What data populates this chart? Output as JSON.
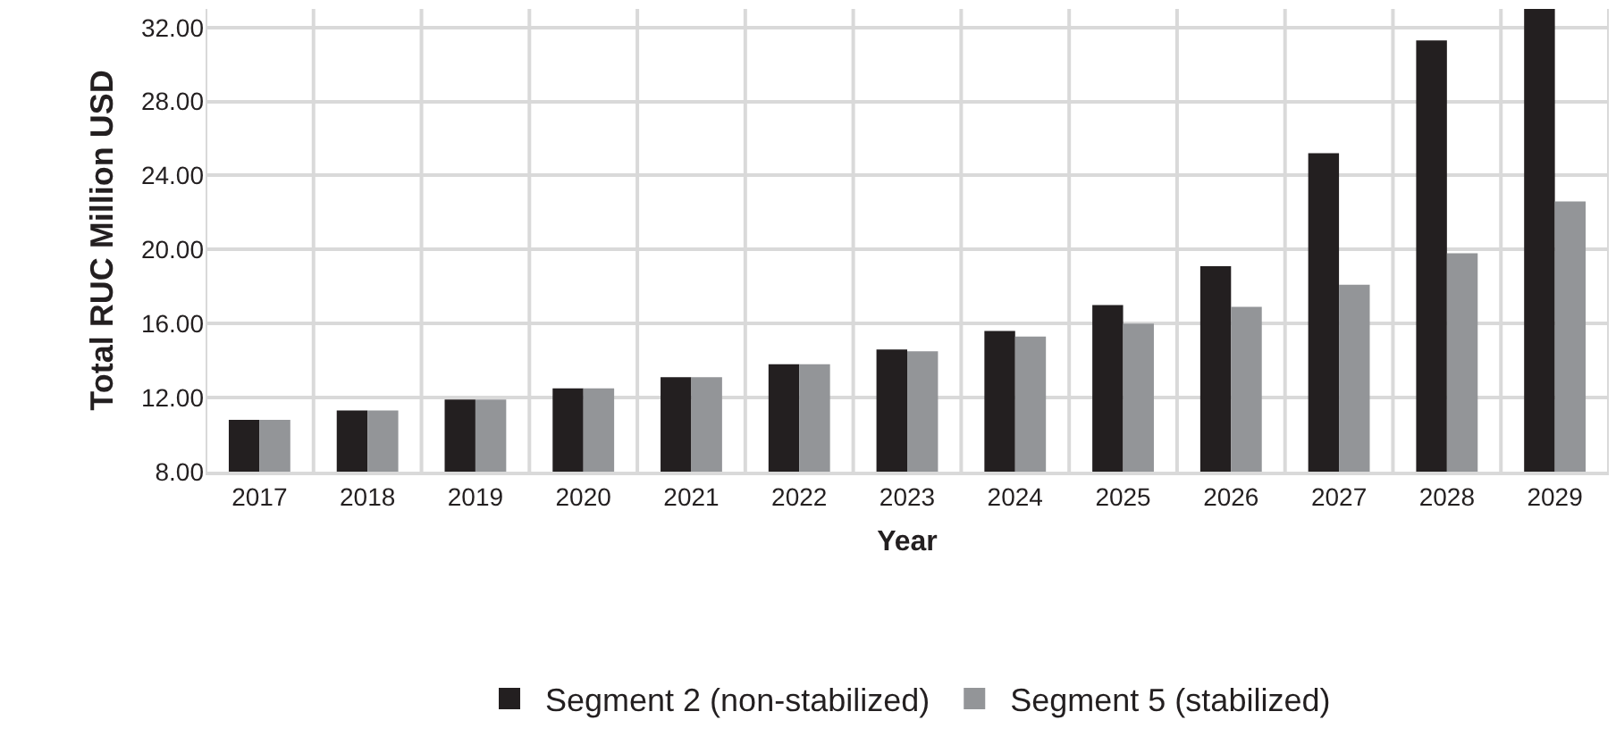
{
  "chart_data": {
    "type": "bar",
    "xlabel": "Year",
    "ylabel": "Total RUC Million USD",
    "categories": [
      "2017",
      "2018",
      "2019",
      "2020",
      "2021",
      "2022",
      "2023",
      "2024",
      "2025",
      "2026",
      "2027",
      "2028",
      "2029"
    ],
    "series": [
      {
        "name": "Segment 2 (non-stabilized)",
        "color": "#231f20",
        "values": [
          10.8,
          11.3,
          11.9,
          12.5,
          13.1,
          13.8,
          14.6,
          15.6,
          17.0,
          19.1,
          25.2,
          31.3,
          33.0
        ]
      },
      {
        "name": "Segment 5 (stabilized)",
        "color": "#939598",
        "values": [
          10.8,
          11.3,
          11.9,
          12.5,
          13.1,
          13.8,
          14.5,
          15.3,
          16.0,
          16.9,
          18.1,
          19.8,
          22.6
        ]
      }
    ],
    "ylim": [
      8,
      33
    ],
    "yticks": [
      {
        "value": 8,
        "label": "8.00"
      },
      {
        "value": 12,
        "label": "12.00"
      },
      {
        "value": 16,
        "label": "16.00"
      },
      {
        "value": 20,
        "label": "20.00"
      },
      {
        "value": 24,
        "label": "24.00"
      },
      {
        "value": 28,
        "label": "28.00"
      },
      {
        "value": 32,
        "label": "32.00"
      }
    ],
    "grid": true,
    "legend": "bottom"
  }
}
